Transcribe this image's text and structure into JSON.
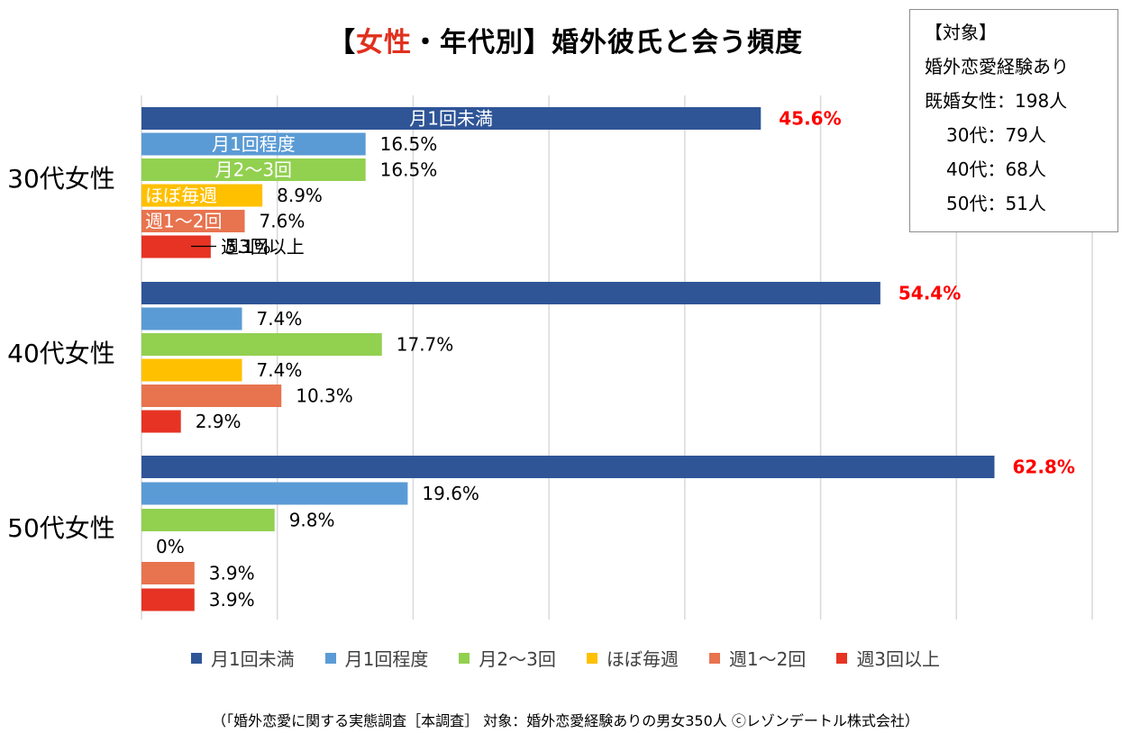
{
  "title": {
    "prefix": "【",
    "highlight": "女性",
    "suffix": "・年代別】婚外彼氏と会う頻度"
  },
  "info_box": {
    "heading": "【対象】",
    "line1": "婚外恋愛経験あり",
    "line2": "既婚女性：198人",
    "groups": [
      "30代：79人",
      "40代：68人",
      "50代：51人"
    ]
  },
  "footer": "（「婚外恋愛に関する実態調査［本調査］ 対象：婚外恋愛経験ありの男女350人 ⓒレゾンデートル株式会社）",
  "chart_data": {
    "type": "bar",
    "orientation": "horizontal",
    "categories": [
      "30代女性",
      "40代女性",
      "50代女性"
    ],
    "xlim": [
      0,
      70
    ],
    "grid": true,
    "legend_position": "bottom",
    "highlight_color": "#ff0000",
    "series": [
      {
        "name": "月1回未満",
        "color": "#2f5597",
        "values": [
          45.6,
          54.4,
          62.8
        ],
        "labels": [
          "45.6%",
          "54.4%",
          "62.8%"
        ]
      },
      {
        "name": "月1回程度",
        "color": "#5b9bd5",
        "values": [
          16.5,
          7.4,
          19.6
        ],
        "labels": [
          "16.5%",
          "7.4%",
          "19.6%"
        ]
      },
      {
        "name": "月2～3回",
        "color": "#92d050",
        "values": [
          16.5,
          17.7,
          9.8
        ],
        "labels": [
          "16.5%",
          "17.7%",
          "9.8%"
        ]
      },
      {
        "name": "ほぼ毎週",
        "color": "#ffc000",
        "values": [
          8.9,
          7.4,
          0
        ],
        "labels": [
          "8.9%",
          "7.4%",
          "0%"
        ]
      },
      {
        "name": "週1～2回",
        "color": "#e8734f",
        "values": [
          7.6,
          10.3,
          3.9
        ],
        "labels": [
          "7.6%",
          "10.3%",
          "3.9%"
        ]
      },
      {
        "name": "週3回以上",
        "color": "#e63323",
        "values": [
          5.1,
          2.9,
          3.9
        ],
        "labels": [
          "5.1%",
          "2.9%",
          "3.9%"
        ]
      }
    ]
  }
}
